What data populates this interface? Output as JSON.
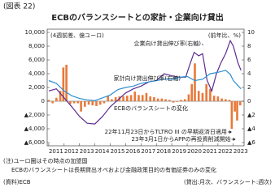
{
  "chart_data": {
    "type": "bar-line",
    "figure_number": "(図表 22)",
    "title": "ECBのバランスシートとの家計・企業向け貸出",
    "y_label": "(4週前差、億ユーロ)",
    "y2_label": "(前年比、%)",
    "xlim": [
      2010.9,
      2023.7
    ],
    "xticks": [
      2011,
      2012,
      2013,
      2014,
      2015,
      2016,
      2017,
      2018,
      2019,
      2020,
      2021,
      2022,
      2023
    ],
    "ylim": [
      -6000,
      10000
    ],
    "yticks": [
      {
        "value": 10000,
        "label": "10,000"
      },
      {
        "value": 8000,
        "label": "8,000"
      },
      {
        "value": 6000,
        "label": "6,000"
      },
      {
        "value": 4000,
        "label": "4,000"
      },
      {
        "value": 2000,
        "label": "2,000"
      },
      0,
      {
        "value": -2000,
        "label": "▲2,000"
      },
      {
        "value": -4000,
        "label": "▲4,000"
      },
      {
        "value": -6000,
        "label": "▲6,000"
      }
    ],
    "y2lim": [
      -6,
      10
    ],
    "y2ticks": [
      10,
      8,
      6,
      4,
      2,
      0,
      {
        "value": -2,
        "label": "▲2"
      },
      {
        "value": -4,
        "label": "▲4"
      },
      {
        "value": -6,
        "label": "▲6"
      }
    ],
    "series": [
      {
        "name": "ECBのバランスシートの変化",
        "type": "bar",
        "color": "#e8793a",
        "axis": "y",
        "x": [
          2011.0,
          2011.25,
          2011.5,
          2011.75,
          2011.95,
          2012.15,
          2012.4,
          2012.65,
          2012.9,
          2013.1,
          2013.35,
          2013.6,
          2013.85,
          2014.1,
          2014.35,
          2014.6,
          2014.85,
          2015.1,
          2015.35,
          2015.6,
          2015.85,
          2016.1,
          2016.35,
          2016.6,
          2016.85,
          2017.1,
          2017.35,
          2017.6,
          2017.85,
          2018.1,
          2018.35,
          2018.6,
          2018.85,
          2019.1,
          2019.35,
          2019.6,
          2019.85,
          2020.1,
          2020.3,
          2020.5,
          2020.75,
          2021.0,
          2021.25,
          2021.5,
          2021.75,
          2022.0,
          2022.25,
          2022.5,
          2022.75,
          2022.9,
          2023.1,
          2023.25,
          2023.45
        ],
        "values": [
          200,
          -300,
          500,
          1500,
          4900,
          5300,
          -400,
          -300,
          -300,
          -1500,
          -800,
          -500,
          -600,
          -700,
          -500,
          -300,
          800,
          300,
          600,
          700,
          700,
          800,
          900,
          1400,
          900,
          900,
          1200,
          700,
          600,
          400,
          400,
          300,
          200,
          -200,
          -100,
          200,
          300,
          1000,
          2500,
          5500,
          1500,
          1200,
          2500,
          1800,
          800,
          700,
          400,
          300,
          200,
          -4000,
          -1500,
          -2800,
          -600
        ]
      },
      {
        "name": "企業向け貸出伸び率(右軸)",
        "type": "line",
        "color": "#5b2c8f",
        "axis": "y2",
        "x": [
          2011.0,
          2011.5,
          2012.0,
          2012.5,
          2013.0,
          2013.5,
          2014.0,
          2014.5,
          2015.0,
          2015.5,
          2016.0,
          2016.5,
          2017.0,
          2017.5,
          2018.0,
          2018.5,
          2019.0,
          2019.5,
          2019.9,
          2020.2,
          2020.45,
          2020.75,
          2021.0,
          2021.3,
          2021.6,
          2021.9,
          2022.2,
          2022.5,
          2022.8,
          2023.0,
          2023.3,
          2023.5
        ],
        "values": [
          1.5,
          1.8,
          0.5,
          -0.8,
          -2.2,
          -3.2,
          -3.3,
          -2.2,
          -0.8,
          0.2,
          1.2,
          1.8,
          2.2,
          2.8,
          3.0,
          4.0,
          3.7,
          3.5,
          3.5,
          5.5,
          7.1,
          6.6,
          6.9,
          3.0,
          1.5,
          4.0,
          5.6,
          6.9,
          8.8,
          8.0,
          5.6,
          4.5
        ]
      },
      {
        "name": "家計向け貸出伸び率(右軸)",
        "type": "line",
        "color": "#2f8fd0",
        "axis": "y2",
        "x": [
          2011.0,
          2011.5,
          2012.0,
          2012.5,
          2013.0,
          2013.5,
          2014.0,
          2014.5,
          2015.0,
          2015.5,
          2016.0,
          2016.5,
          2017.0,
          2017.5,
          2018.0,
          2018.5,
          2019.0,
          2019.5,
          2020.0,
          2020.5,
          2021.0,
          2021.5,
          2022.0,
          2022.5,
          2022.8,
          2023.0,
          2023.5
        ],
        "values": [
          3.0,
          2.6,
          1.5,
          0.8,
          0.4,
          0.2,
          0.1,
          0.5,
          0.9,
          1.7,
          2.0,
          2.2,
          2.6,
          2.8,
          3.0,
          3.2,
          3.3,
          3.5,
          3.6,
          3.0,
          3.2,
          4.0,
          4.2,
          4.5,
          3.9,
          3.0,
          1.8
        ]
      }
    ],
    "annotations": [
      "22年11月23日からTLTRO III の早期返済日適用",
      "23年3月1日からAPPの再投資削減開始"
    ],
    "notes": [
      "(注)ユーロ圏はその時点の加盟国",
      "ECBのバランスシートは長期貸出オペおよび金融政策目的の有価証券のみの変化"
    ],
    "source": "(資料)ECB",
    "frequency": "(貸出:月次、バランスシート:週次)"
  }
}
